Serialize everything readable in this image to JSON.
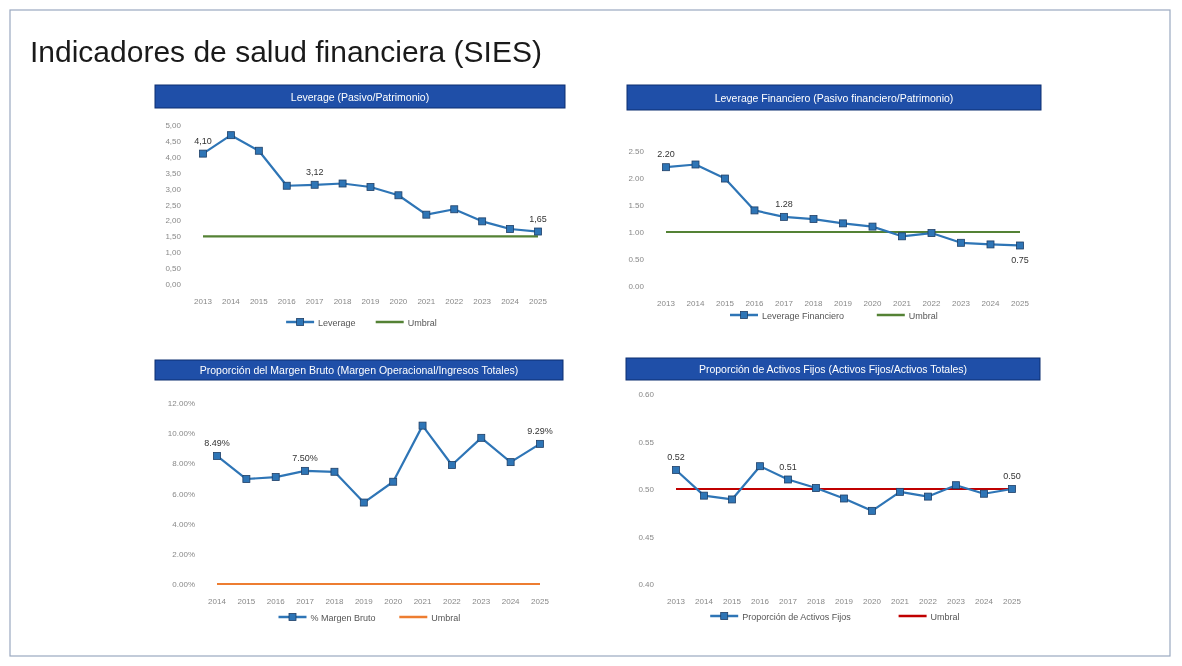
{
  "chart_data": [
    {
      "type": "line",
      "title": "Leverage (Pasivo/Patrimonio)",
      "annotations": [
        "Indicadores de salud financiera (SIES)"
      ],
      "categories": [
        "2013",
        "2014",
        "2015",
        "2016",
        "2017",
        "2018",
        "2019",
        "2020",
        "2021",
        "2022",
        "2023",
        "2024",
        "2025"
      ],
      "ylim": [
        0,
        5
      ],
      "yticks": [
        {
          "value": 0,
          "label": "0,00"
        },
        {
          "value": 0.5,
          "label": "0,50"
        },
        {
          "value": 1,
          "label": "1,00"
        },
        {
          "value": 1.5,
          "label": "1,50"
        },
        {
          "value": 2,
          "label": "2,00"
        },
        {
          "value": 2.5,
          "label": "2,50"
        },
        {
          "value": 3,
          "label": "3,00"
        },
        {
          "value": 3.5,
          "label": "3,50"
        },
        {
          "value": 4,
          "label": "4,00"
        },
        {
          "value": 4.5,
          "label": "4,50"
        },
        {
          "value": 5,
          "label": "5,00"
        }
      ],
      "legend": "bottom",
      "series": [
        {
          "name": "Leverage",
          "color": "#2e75b6",
          "marker": "square",
          "values": [
            4.1,
            4.68,
            4.19,
            3.09,
            3.12,
            3.16,
            3.05,
            2.79,
            2.18,
            2.35,
            1.97,
            1.73,
            1.65
          ],
          "value_labels": [
            "4,10",
            null,
            null,
            null,
            "3,12",
            null,
            null,
            null,
            null,
            null,
            null,
            null,
            "1,65"
          ]
        },
        {
          "name": "Umbral",
          "color": "#548235",
          "marker": "none",
          "values": [
            1.5,
            1.5,
            1.5,
            1.5,
            1.5,
            1.5,
            1.5,
            1.5,
            1.5,
            1.5,
            1.5,
            1.5,
            1.5
          ]
        }
      ]
    },
    {
      "type": "line",
      "title": "Leverage Financiero (Pasivo financiero/Patrimonio)",
      "categories": [
        "2013",
        "2014",
        "2015",
        "2016",
        "2017",
        "2018",
        "2019",
        "2020",
        "2021",
        "2022",
        "2023",
        "2024",
        "2025"
      ],
      "ylim": [
        0,
        2.5
      ],
      "yticks": [
        {
          "value": 0,
          "label": "0.00"
        },
        {
          "value": 0.5,
          "label": "0.50"
        },
        {
          "value": 1,
          "label": "1.00"
        },
        {
          "value": 1.5,
          "label": "1.50"
        },
        {
          "value": 2,
          "label": "2.00"
        },
        {
          "value": 2.5,
          "label": "2.50"
        }
      ],
      "legend": "bottom",
      "series": [
        {
          "name": "Leverage Financiero",
          "color": "#2e75b6",
          "marker": "square",
          "values": [
            2.2,
            2.25,
            1.99,
            1.4,
            1.28,
            1.24,
            1.16,
            1.1,
            0.92,
            0.98,
            0.8,
            0.77,
            0.75
          ],
          "value_labels": [
            "2.20",
            null,
            null,
            null,
            "1.28",
            null,
            null,
            null,
            null,
            null,
            null,
            null,
            "0.75"
          ]
        },
        {
          "name": "Umbral",
          "color": "#548235",
          "marker": "none",
          "values": [
            1,
            1,
            1,
            1,
            1,
            1,
            1,
            1,
            1,
            1,
            1,
            1,
            1
          ]
        }
      ]
    },
    {
      "type": "line",
      "title": "Proporción del Margen Bruto (Margen Operacional/Ingresos Totales)",
      "categories": [
        "2014",
        "2015",
        "2016",
        "2017",
        "2018",
        "2019",
        "2020",
        "2021",
        "2022",
        "2023",
        "2024",
        "2025"
      ],
      "ylim": [
        0,
        12
      ],
      "yticks": [
        {
          "value": 0,
          "label": "0.00%"
        },
        {
          "value": 2,
          "label": "2.00%"
        },
        {
          "value": 4,
          "label": "4.00%"
        },
        {
          "value": 6,
          "label": "6.00%"
        },
        {
          "value": 8,
          "label": "8.00%"
        },
        {
          "value": 10,
          "label": "10.00%"
        },
        {
          "value": 12,
          "label": "12.00%"
        }
      ],
      "legend": "bottom",
      "series": [
        {
          "name": "% Margen Bruto",
          "color": "#2e75b6",
          "marker": "square",
          "values": [
            8.49,
            6.96,
            7.09,
            7.5,
            7.44,
            5.4,
            6.78,
            10.5,
            7.89,
            9.69,
            8.08,
            9.29
          ],
          "value_labels": [
            "8.49%",
            null,
            null,
            "7.50%",
            null,
            null,
            null,
            null,
            null,
            null,
            null,
            "9.29%"
          ]
        },
        {
          "name": "Umbral",
          "color": "#ed7d31",
          "marker": "none",
          "values": [
            0,
            0,
            0,
            0,
            0,
            0,
            0,
            0,
            0,
            0,
            0,
            0
          ]
        }
      ]
    },
    {
      "type": "line",
      "title": "Proporción de Activos Fijos (Activos Fijos/Activos Totales)",
      "categories": [
        "2013",
        "2014",
        "2015",
        "2016",
        "2017",
        "2018",
        "2019",
        "2020",
        "2021",
        "2022",
        "2023",
        "2024",
        "2025"
      ],
      "ylim": [
        0.4,
        0.6
      ],
      "yticks": [
        {
          "value": 0.4,
          "label": "0.40"
        },
        {
          "value": 0.45,
          "label": "0.45"
        },
        {
          "value": 0.5,
          "label": "0.50"
        },
        {
          "value": 0.55,
          "label": "0.55"
        },
        {
          "value": 0.6,
          "label": "0.60"
        }
      ],
      "legend": "bottom",
      "series": [
        {
          "name": "Proporción de Activos Fijos",
          "color": "#2e75b6",
          "marker": "square",
          "values": [
            0.52,
            0.493,
            0.489,
            0.524,
            0.51,
            0.501,
            0.49,
            0.477,
            0.497,
            0.492,
            0.504,
            0.495,
            0.5
          ],
          "value_labels": [
            "0.52",
            null,
            null,
            null,
            "0.51",
            null,
            null,
            null,
            null,
            null,
            null,
            null,
            "0.50"
          ]
        },
        {
          "name": "Umbral",
          "color": "#c00000",
          "marker": "none",
          "values": [
            0.5,
            0.5,
            0.5,
            0.5,
            0.5,
            0.5,
            0.5,
            0.5,
            0.5,
            0.5,
            0.5,
            0.5,
            0.5
          ]
        }
      ]
    }
  ]
}
